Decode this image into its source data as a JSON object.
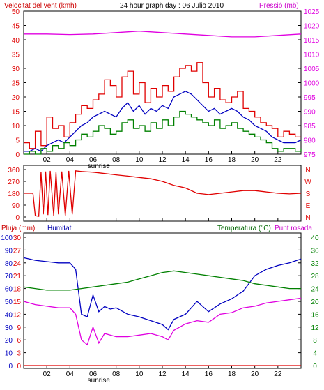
{
  "header": {
    "left": "Velocitat del vent (kmh)",
    "center": "24 hour graph day : 06 Julio 2010",
    "right": "Pressió (mb)"
  },
  "sunrise_label": "sunrise",
  "colors": {
    "red": "#e00000",
    "green": "#008000",
    "blue": "#0000c0",
    "magenta": "#e000e0",
    "frame": "#000000"
  },
  "chart_data": [
    {
      "type": "line",
      "title": "24 hour graph day : 06 Julio 2010",
      "ylabel": "Velocitat del vent (kmh)",
      "y2label": "Pressió (mb)",
      "x_ticks": [
        "02",
        "04",
        "06",
        "08",
        "10",
        "12",
        "14",
        "16",
        "18",
        "20",
        "22",
        ""
      ],
      "xlim": [
        0,
        24
      ],
      "ylim": [
        0,
        50
      ],
      "y_ticks": [
        0,
        5,
        10,
        15,
        20,
        25,
        30,
        35,
        40,
        45,
        50
      ],
      "y2lim": [
        975,
        1025
      ],
      "y2_ticks": [
        975,
        980,
        985,
        990,
        995,
        1000,
        1005,
        1010,
        1015,
        1020,
        1025
      ],
      "series": [
        {
          "name": "Velocitat del vent (kmh)",
          "axis": "y2",
          "color": "magenta",
          "x": [
            0,
            2,
            4,
            6,
            8,
            10,
            12,
            14,
            16,
            18,
            20,
            22,
            24
          ],
          "values": [
            1017,
            1017,
            1016.8,
            1017,
            1017.5,
            1018,
            1017.5,
            1017,
            1016.5,
            1016,
            1016,
            1016.5,
            1017
          ]
        },
        {
          "name": "",
          "style": "step",
          "color": "red",
          "x": [
            0,
            0.5,
            1,
            1.5,
            2,
            2.5,
            3,
            3.5,
            4,
            4.5,
            5,
            5.5,
            6,
            6.5,
            7,
            7.5,
            8,
            8.5,
            9,
            9.5,
            10,
            10.5,
            11,
            11.5,
            12,
            12.5,
            13,
            13.5,
            14,
            14.5,
            15,
            15.5,
            16,
            16.5,
            17,
            17.5,
            18,
            18.5,
            19,
            19.5,
            20,
            20.5,
            21,
            21.5,
            22,
            22.5,
            23,
            23.5,
            24
          ],
          "values": [
            4,
            2,
            8,
            3,
            13,
            9,
            10,
            6,
            11,
            14,
            17,
            16,
            19,
            21,
            26,
            24,
            20,
            27,
            29,
            21,
            25,
            18,
            23,
            20,
            24,
            22,
            27,
            30,
            31,
            29,
            32,
            25,
            20,
            23,
            19,
            18,
            20,
            22,
            16,
            15,
            13,
            11,
            10,
            9,
            6,
            8,
            7,
            6,
            6
          ]
        },
        {
          "name": "",
          "color": "blue",
          "x": [
            0,
            0.5,
            1,
            1.5,
            2,
            2.5,
            3,
            3.5,
            4,
            4.5,
            5,
            5.5,
            6,
            6.5,
            7,
            7.5,
            8,
            8.5,
            9,
            9.5,
            10,
            10.5,
            11,
            11.5,
            12,
            12.5,
            13,
            13.5,
            14,
            14.5,
            15,
            15.5,
            16,
            16.5,
            17,
            17.5,
            18,
            18.5,
            19,
            19.5,
            20,
            20.5,
            21,
            21.5,
            22,
            22.5,
            23,
            23.5,
            24
          ],
          "values": [
            1,
            1,
            2,
            1,
            3,
            4,
            5,
            4,
            6,
            8,
            10,
            11,
            13,
            14,
            15,
            14,
            13,
            16,
            18,
            15,
            17,
            14,
            16,
            15,
            17,
            16,
            20,
            21,
            22,
            21,
            19,
            17,
            15,
            16,
            14,
            15,
            16,
            15,
            13,
            12,
            10,
            9,
            8,
            6,
            5,
            4,
            4,
            4,
            5
          ]
        },
        {
          "name": "",
          "style": "step",
          "color": "green",
          "x": [
            0,
            0.5,
            1,
            1.5,
            2,
            2.5,
            3,
            3.5,
            4,
            4.5,
            5,
            5.5,
            6,
            6.5,
            7,
            7.5,
            8,
            8.5,
            9,
            9.5,
            10,
            10.5,
            11,
            11.5,
            12,
            12.5,
            13,
            13.5,
            14,
            14.5,
            15,
            15.5,
            16,
            16.5,
            17,
            17.5,
            18,
            18.5,
            19,
            19.5,
            20,
            20.5,
            21,
            21.5,
            22,
            22.5,
            23,
            23.5,
            24
          ],
          "values": [
            0,
            1,
            0,
            2,
            1,
            3,
            2,
            4,
            3,
            5,
            7,
            6,
            8,
            10,
            9,
            7,
            8,
            11,
            12,
            9,
            10,
            8,
            11,
            9,
            12,
            10,
            13,
            15,
            14,
            13,
            12,
            11,
            10,
            12,
            9,
            10,
            11,
            9,
            8,
            7,
            6,
            5,
            4,
            2,
            1,
            2,
            2,
            1,
            2
          ]
        }
      ]
    },
    {
      "type": "line",
      "x_ticks": [],
      "ylim": [
        0,
        360
      ],
      "y_ticks": [
        0,
        90,
        180,
        270,
        360
      ],
      "y2_ticks": [
        "N",
        "E",
        "S",
        "W",
        "N"
      ],
      "series": [
        {
          "name": "",
          "color": "red",
          "x": [
            0,
            0.8,
            1,
            1.3,
            1.5,
            1.7,
            1.9,
            2.1,
            2.3,
            2.6,
            2.8,
            3.0,
            3.3,
            3.6,
            3.9,
            4.2,
            4.5,
            5,
            6,
            6.5,
            7,
            7.5,
            8,
            9,
            10,
            11,
            12,
            13,
            14,
            15,
            16,
            17,
            18,
            19,
            20,
            21,
            22,
            23,
            24
          ],
          "values": [
            180,
            180,
            10,
            5,
            340,
            20,
            345,
            15,
            350,
            10,
            340,
            20,
            345,
            10,
            350,
            20,
            350,
            345,
            340,
            335,
            330,
            325,
            320,
            310,
            300,
            290,
            270,
            240,
            220,
            180,
            170,
            180,
            190,
            200,
            200,
            190,
            180,
            175,
            180
          ]
        }
      ]
    },
    {
      "type": "line",
      "ylabel": "Pluja (mm)",
      "y2label": "Temperatura (°C)",
      "labels_extra": [
        "Humitat",
        "Punt rosada"
      ],
      "x_ticks": [
        "02",
        "04",
        "06",
        "08",
        "10",
        "12",
        "14",
        "16",
        "18",
        "20",
        "22",
        ""
      ],
      "ylim": [
        0,
        100
      ],
      "y_ticks_left_blue": [
        0,
        10,
        20,
        30,
        40,
        50,
        60,
        70,
        80,
        90,
        100
      ],
      "y_ticks_left_red": [
        0,
        3,
        6,
        9,
        12,
        15,
        18,
        21,
        24,
        27,
        30
      ],
      "y2lim": [
        0,
        40
      ],
      "y2_ticks": [
        0,
        4,
        8,
        12,
        16,
        20,
        24,
        28,
        32,
        36,
        40
      ],
      "series": [
        {
          "name": "Pluja (mm)",
          "color": "red",
          "x": [
            0,
            24
          ],
          "values": [
            0,
            0
          ]
        },
        {
          "name": "Humitat",
          "color": "blue",
          "x": [
            0,
            1,
            2,
            3,
            4,
            4.5,
            5,
            5.5,
            6,
            6.5,
            7,
            7.5,
            8,
            9,
            10,
            11,
            12,
            12.5,
            13,
            14,
            15,
            16,
            17,
            18,
            19,
            20,
            21,
            22,
            23,
            24
          ],
          "values": [
            84,
            82,
            81,
            80,
            80,
            75,
            40,
            38,
            55,
            42,
            46,
            44,
            45,
            40,
            38,
            35,
            32,
            28,
            36,
            40,
            50,
            42,
            48,
            52,
            58,
            70,
            75,
            78,
            80,
            83
          ]
        },
        {
          "name": "Temperatura (°C)",
          "color": "green",
          "x": [
            0,
            1,
            2,
            3,
            4,
            5,
            6,
            7,
            8,
            9,
            10,
            11,
            12,
            13,
            14,
            15,
            16,
            17,
            18,
            19,
            20,
            21,
            22,
            23,
            24
          ],
          "values": [
            24.5,
            24,
            23.5,
            23.5,
            23.5,
            24,
            24.5,
            25,
            25.5,
            26,
            27,
            28,
            29,
            29.5,
            29,
            28.5,
            28,
            27.5,
            27,
            26.5,
            25.5,
            25,
            24.5,
            24,
            24
          ]
        },
        {
          "name": "Punt rosada",
          "color": "magenta",
          "x": [
            0,
            1,
            2,
            3,
            4,
            4.5,
            5,
            5.5,
            6,
            6.5,
            7,
            8,
            9,
            10,
            11,
            12,
            12.5,
            13,
            14,
            15,
            16,
            17,
            18,
            19,
            20,
            21,
            22,
            23,
            24
          ],
          "values": [
            20,
            19,
            18.5,
            18,
            18,
            16,
            8,
            6.5,
            12,
            7,
            10,
            9,
            9,
            9.5,
            10,
            9,
            8,
            11,
            13,
            14,
            13.5,
            16,
            16.5,
            18,
            18.5,
            19.5,
            20,
            20.5,
            21
          ]
        }
      ]
    }
  ]
}
